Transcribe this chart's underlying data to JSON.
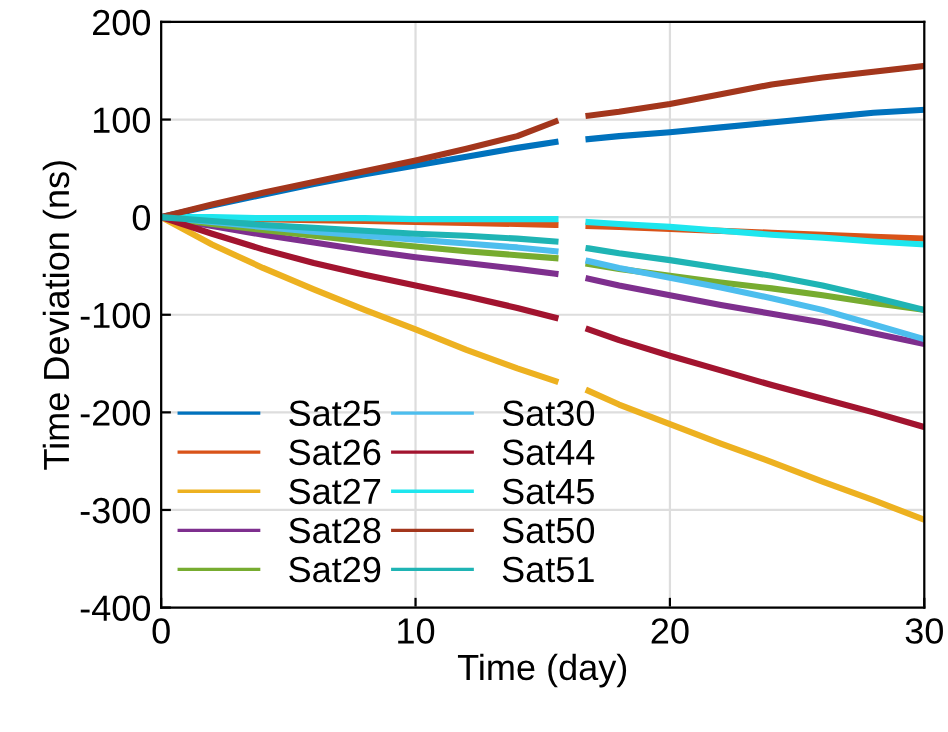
{
  "chart_data": {
    "type": "line",
    "xlabel": "Time (day)",
    "ylabel": "Time Deviation (ns)",
    "x": [
      0,
      2,
      4,
      6,
      8,
      10,
      12,
      14,
      15.5,
      16.2,
      16.8,
      18,
      20,
      22,
      24,
      26,
      28,
      30
    ],
    "xlim": [
      0,
      30
    ],
    "xticks": [
      0,
      10,
      20,
      30
    ],
    "ylim": [
      -400,
      200
    ],
    "yticks": [
      -400,
      -300,
      -200,
      -100,
      0,
      100,
      200
    ],
    "grid": true,
    "legend": "bottom left",
    "marker": "none",
    "line_style": "solid",
    "series": [
      {
        "name": "Sat25",
        "color": "#0072bd",
        "values": [
          0,
          12,
          23,
          34,
          44,
          53,
          62,
          71,
          77,
          null,
          80,
          83,
          87,
          92,
          97,
          102,
          107,
          110
        ]
      },
      {
        "name": "Sat26",
        "color": "#d95319",
        "values": [
          0,
          -1,
          -2,
          -3,
          -4,
          -5,
          -6,
          -7,
          -8,
          null,
          -9,
          -10,
          -12,
          -14,
          -16,
          -18,
          -20,
          -22
        ]
      },
      {
        "name": "Sat27",
        "color": "#edb120",
        "values": [
          0,
          -28,
          -52,
          -74,
          -95,
          -115,
          -136,
          -155,
          -168,
          null,
          -178,
          -192,
          -212,
          -232,
          -251,
          -271,
          -290,
          -310
        ]
      },
      {
        "name": "Sat28",
        "color": "#7e2f8e",
        "values": [
          0,
          -9,
          -18,
          -26,
          -34,
          -41,
          -47,
          -53,
          -58,
          null,
          -63,
          -70,
          -80,
          -90,
          -99,
          -108,
          -119,
          -130
        ]
      },
      {
        "name": "Sat29",
        "color": "#77ac30",
        "values": [
          0,
          -7,
          -13,
          -19,
          -25,
          -30,
          -35,
          -39,
          -42,
          null,
          -48,
          -53,
          -60,
          -67,
          -73,
          -80,
          -88,
          -95
        ]
      },
      {
        "name": "Sat30",
        "color": "#4dbeee",
        "values": [
          0,
          -5,
          -10,
          -15,
          -19,
          -23,
          -27,
          -31,
          -35,
          null,
          -45,
          -52,
          -62,
          -72,
          -83,
          -95,
          -110,
          -125
        ]
      },
      {
        "name": "Sat44",
        "color": "#a2142f",
        "values": [
          0,
          -17,
          -33,
          -47,
          -59,
          -70,
          -81,
          -93,
          -103,
          null,
          -115,
          -126,
          -142,
          -157,
          -172,
          -186,
          -200,
          -215
        ]
      },
      {
        "name": "Sat45",
        "color": "#1ee6ee",
        "values": [
          0,
          0,
          -1,
          -1,
          -1,
          -2,
          -2,
          -2,
          -2,
          null,
          -5,
          -7,
          -10,
          -14,
          -18,
          -21,
          -25,
          -28
        ]
      },
      {
        "name": "Sat50",
        "color": "#a3361c",
        "values": [
          0,
          13,
          25,
          36,
          47,
          58,
          70,
          83,
          98,
          null,
          104,
          108,
          116,
          126,
          136,
          143,
          149,
          155
        ]
      },
      {
        "name": "Sat51",
        "color": "#1fb4b4",
        "values": [
          0,
          -4,
          -8,
          -11,
          -14,
          -17,
          -19,
          -22,
          -25,
          null,
          -32,
          -37,
          -44,
          -52,
          -60,
          -70,
          -82,
          -95
        ]
      }
    ]
  }
}
